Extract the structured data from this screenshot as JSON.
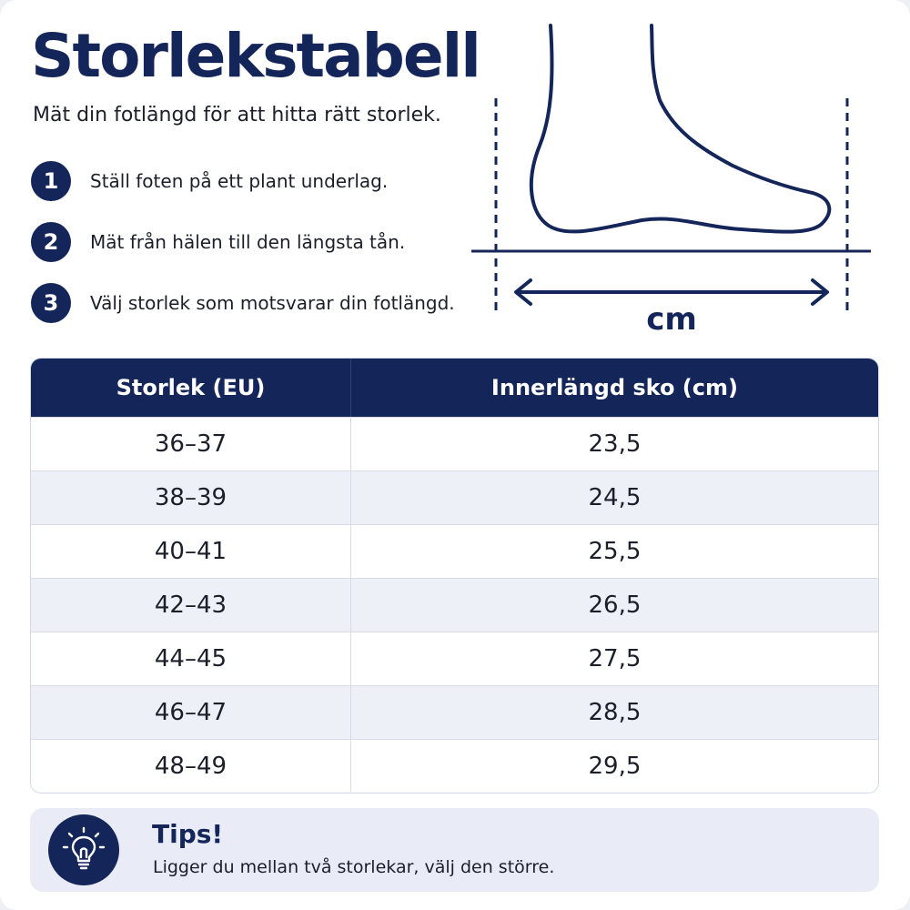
{
  "header": {
    "title": "Storlekstabell",
    "subtitle": "Mät din fotlängd för att hitta rätt storlek."
  },
  "steps": [
    {
      "number": "1",
      "text": "Ställ foten på ett plant underlag."
    },
    {
      "number": "2",
      "text": "Mät från hälen till den längsta tån."
    },
    {
      "number": "3",
      "text": "Välj storlek som motsvarar din fotlängd."
    }
  ],
  "diagram": {
    "unit_label": "cm"
  },
  "table": {
    "columns": [
      "Storlek (EU)",
      "Innerlängd sko (cm)"
    ],
    "rows": [
      [
        "36–37",
        "23,5"
      ],
      [
        "38–39",
        "24,5"
      ],
      [
        "40–41",
        "25,5"
      ],
      [
        "42–43",
        "26,5"
      ],
      [
        "44–45",
        "27,5"
      ],
      [
        "46–47",
        "28,5"
      ],
      [
        "48–49",
        "29,5"
      ]
    ]
  },
  "tips": {
    "title": "Tips!",
    "text": "Ligger du mellan två storlekar, välj den större.",
    "icon": "lightbulb-icon"
  },
  "colors": {
    "primary": "#14255a",
    "row_alt": "#eef0f8",
    "tip_background": "#e9ecf6"
  }
}
